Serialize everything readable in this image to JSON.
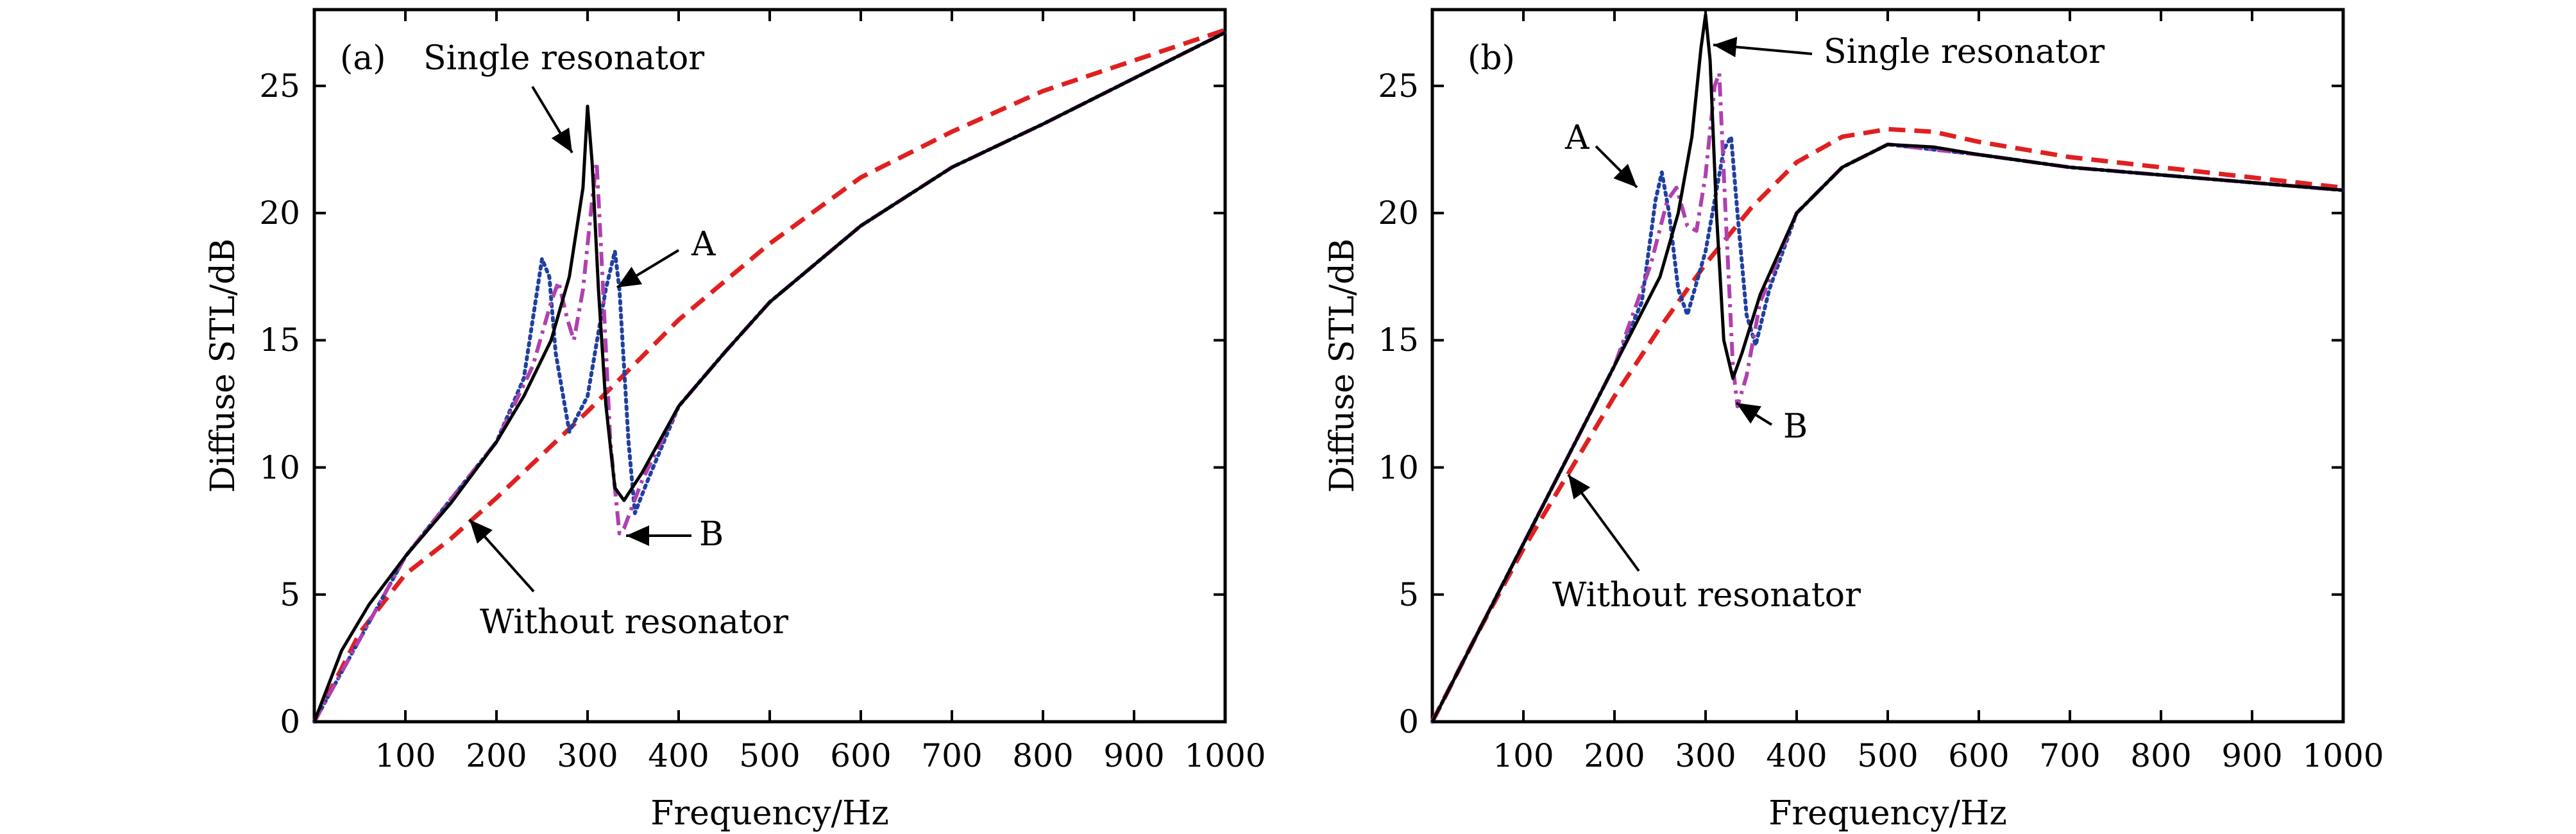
{
  "chart_data": [
    {
      "type": "line",
      "panel_label": "(a)",
      "xlabel": "Frequency/Hz",
      "ylabel": "Diffuse STL/dB",
      "xlim": [
        0,
        1000
      ],
      "ylim": [
        0,
        28
      ],
      "xticks": [
        100,
        200,
        300,
        400,
        500,
        600,
        700,
        800,
        900,
        1000
      ],
      "yticks": [
        0,
        5,
        10,
        15,
        20,
        25
      ],
      "grid": false,
      "series": [
        {
          "style": "dashed",
          "color": "#e02020",
          "x": [
            0,
            50,
            100,
            150,
            200,
            300,
            400,
            500,
            600,
            700,
            800,
            900,
            1000
          ],
          "y": [
            0,
            3.5,
            5.8,
            7.2,
            8.8,
            12.2,
            15.8,
            18.8,
            21.4,
            23.2,
            24.8,
            26.0,
            27.2
          ]
        },
        {
          "style": "solid",
          "color": "#000000",
          "x": [
            0,
            30,
            60,
            100,
            150,
            200,
            230,
            260,
            280,
            295,
            300,
            305,
            312,
            320,
            330,
            340,
            360,
            400,
            450,
            500,
            600,
            700,
            800,
            900,
            1000
          ],
          "y": [
            0,
            2.8,
            4.6,
            6.5,
            8.6,
            11.0,
            12.8,
            15.0,
            17.5,
            21.0,
            24.2,
            22.0,
            17.0,
            12.5,
            9.2,
            8.7,
            9.8,
            12.4,
            14.5,
            16.5,
            19.5,
            21.8,
            23.5,
            25.3,
            27.1
          ]
        },
        {
          "style": "dash-dot",
          "color": "#b040b0",
          "x": [
            0,
            100,
            200,
            240,
            260,
            268,
            278,
            285,
            295,
            305,
            310,
            315,
            325,
            335,
            340,
            360,
            400,
            450,
            500,
            600,
            700,
            800,
            900,
            1000
          ],
          "y": [
            0,
            6.5,
            11.0,
            14.0,
            16.5,
            17.3,
            15.8,
            15.0,
            17.0,
            20.5,
            22.0,
            18.5,
            11.0,
            7.4,
            7.6,
            9.5,
            12.4,
            14.5,
            16.5,
            19.5,
            21.8,
            23.5,
            25.3,
            27.1
          ]
        },
        {
          "style": "dotted",
          "color": "#2040a0",
          "x": [
            0,
            100,
            200,
            230,
            250,
            258,
            265,
            280,
            300,
            320,
            330,
            335,
            345,
            352,
            365,
            400,
            450,
            500,
            600,
            700,
            800,
            900,
            1000
          ],
          "y": [
            0,
            6.5,
            11.0,
            13.5,
            18.2,
            17.5,
            14.5,
            11.4,
            12.8,
            17.0,
            18.5,
            17.0,
            11.0,
            8.2,
            9.4,
            12.4,
            14.5,
            16.5,
            19.5,
            21.8,
            23.5,
            25.3,
            27.1
          ]
        }
      ],
      "annotations": [
        {
          "text": "Single resonator"
        },
        {
          "text": "A"
        },
        {
          "text": "B"
        },
        {
          "text": "Without resonator"
        }
      ]
    },
    {
      "type": "line",
      "panel_label": "(b)",
      "xlabel": "Frequency/Hz",
      "ylabel": "Diffuse STL/dB",
      "xlim": [
        0,
        1000
      ],
      "ylim": [
        0,
        28
      ],
      "xticks": [
        100,
        200,
        300,
        400,
        500,
        600,
        700,
        800,
        900,
        1000
      ],
      "yticks": [
        0,
        5,
        10,
        15,
        20,
        25
      ],
      "grid": false,
      "series": [
        {
          "style": "dashed",
          "color": "#e02020",
          "x": [
            0,
            50,
            100,
            150,
            200,
            250,
            300,
            350,
            400,
            450,
            500,
            550,
            600,
            700,
            800,
            900,
            1000
          ],
          "y": [
            0,
            3.5,
            6.8,
            9.8,
            12.8,
            15.5,
            18.0,
            20.2,
            22.0,
            23.0,
            23.3,
            23.2,
            22.8,
            22.2,
            21.8,
            21.4,
            21.0
          ]
        },
        {
          "style": "solid",
          "color": "#000000",
          "x": [
            0,
            50,
            100,
            150,
            200,
            250,
            270,
            285,
            295,
            300,
            305,
            312,
            320,
            330,
            340,
            360,
            400,
            450,
            500,
            550,
            600,
            700,
            800,
            900,
            1000
          ],
          "y": [
            0,
            3.5,
            7.0,
            10.5,
            14.0,
            17.5,
            20.0,
            23.0,
            26.5,
            27.8,
            26.0,
            20.0,
            15.0,
            13.5,
            14.5,
            16.8,
            20.0,
            21.8,
            22.7,
            22.6,
            22.3,
            21.8,
            21.5,
            21.2,
            20.9
          ]
        },
        {
          "style": "dash-dot",
          "color": "#b040b0",
          "x": [
            0,
            100,
            200,
            240,
            258,
            268,
            280,
            290,
            300,
            310,
            315,
            322,
            330,
            335,
            345,
            360,
            400,
            450,
            500,
            600,
            700,
            800,
            900,
            1000
          ],
          "y": [
            0,
            7.0,
            14.0,
            18.0,
            20.5,
            21.0,
            19.5,
            19.3,
            21.5,
            25.0,
            25.5,
            20.0,
            14.0,
            12.4,
            13.6,
            16.5,
            20.0,
            21.8,
            22.7,
            22.3,
            21.8,
            21.5,
            21.2,
            20.9
          ]
        },
        {
          "style": "dotted",
          "color": "#2040a0",
          "x": [
            0,
            100,
            200,
            230,
            245,
            252,
            260,
            270,
            280,
            300,
            320,
            328,
            335,
            345,
            355,
            370,
            400,
            450,
            500,
            600,
            700,
            800,
            900,
            1000
          ],
          "y": [
            0,
            7.0,
            14.0,
            16.5,
            20.5,
            21.6,
            20.0,
            17.0,
            16.0,
            18.5,
            22.5,
            23.0,
            20.0,
            16.0,
            14.8,
            17.0,
            20.0,
            21.8,
            22.7,
            22.3,
            21.8,
            21.5,
            21.2,
            20.9
          ]
        }
      ],
      "annotations": [
        {
          "text": "Single resonator"
        },
        {
          "text": "A"
        },
        {
          "text": "B"
        },
        {
          "text": "Without resonator"
        }
      ]
    }
  ]
}
